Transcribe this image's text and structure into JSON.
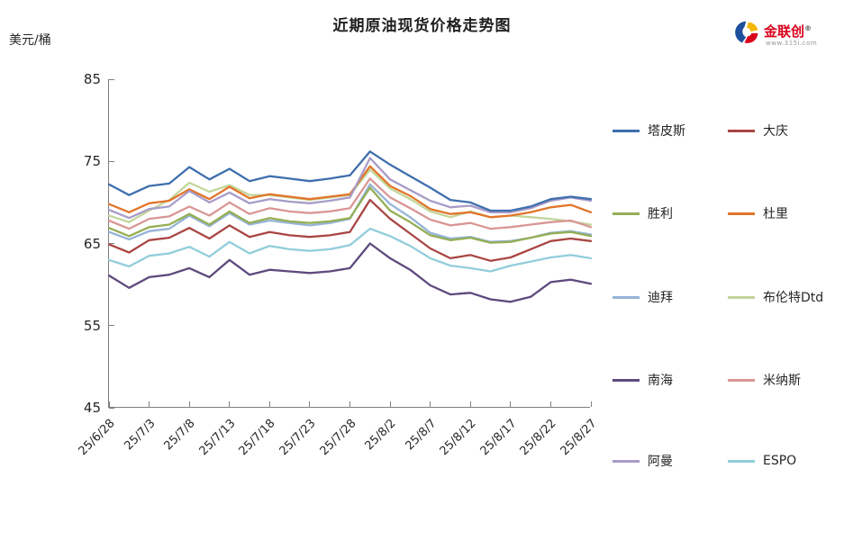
{
  "title": "近期原油现货价格走势图",
  "y_axis_unit": "美元/桶",
  "logo": {
    "name": "金联创",
    "reg": "®",
    "url": "www.315i.com"
  },
  "chart_data": {
    "type": "line",
    "title": "近期原油现货价格走势图",
    "ylabel": "美元/桶",
    "xlabel": "",
    "ylim": [
      45,
      85
    ],
    "y_ticks": [
      85,
      75,
      65,
      55,
      45
    ],
    "grid": false,
    "legend_position": "right",
    "x_tick_labels": [
      "25/6/28",
      "25/7/3",
      "25/7/8",
      "25/7/13",
      "25/7/18",
      "25/7/23",
      "25/7/28",
      "25/8/2",
      "25/8/7",
      "25/8/12",
      "25/8/17",
      "25/8/22",
      "25/8/27"
    ],
    "series": [
      {
        "name": "塔皮斯",
        "color": "#3F6FAD",
        "values": [
          72.2,
          70.9,
          72.0,
          72.3,
          74.3,
          72.8,
          74.1,
          72.6,
          73.2,
          72.9,
          72.6,
          72.9,
          73.3,
          76.2,
          74.6,
          73.2,
          71.8,
          70.3,
          70.0,
          69.0,
          69.0,
          69.5,
          70.4,
          70.7,
          70.4
        ]
      },
      {
        "name": "大庆",
        "color": "#A94643",
        "values": [
          64.9,
          63.9,
          65.4,
          65.7,
          66.9,
          65.6,
          67.2,
          65.8,
          66.4,
          66.0,
          65.8,
          66.0,
          66.4,
          70.3,
          68.0,
          66.2,
          64.4,
          63.2,
          63.6,
          62.9,
          63.3,
          64.3,
          65.3,
          65.6,
          65.3
        ]
      },
      {
        "name": "胜利",
        "color": "#94AF54",
        "values": [
          66.9,
          65.9,
          67.0,
          67.3,
          68.6,
          67.3,
          68.9,
          67.5,
          68.1,
          67.7,
          67.5,
          67.7,
          68.1,
          71.8,
          69.0,
          67.6,
          66.0,
          65.4,
          65.7,
          65.1,
          65.2,
          65.7,
          66.2,
          66.4,
          65.9
        ]
      },
      {
        "name": "杜里",
        "color": "#E2752B",
        "values": [
          69.8,
          68.8,
          69.9,
          70.2,
          71.6,
          70.4,
          71.9,
          70.5,
          71.0,
          70.7,
          70.4,
          70.7,
          71.0,
          74.4,
          72.0,
          70.8,
          69.2,
          68.6,
          68.8,
          68.2,
          68.4,
          68.8,
          69.4,
          69.7,
          68.8
        ]
      },
      {
        "name": "迪拜",
        "color": "#95B3D7",
        "values": [
          66.4,
          65.5,
          66.5,
          66.8,
          68.4,
          67.1,
          68.7,
          67.3,
          67.8,
          67.5,
          67.2,
          67.5,
          68.0,
          72.2,
          69.8,
          68.2,
          66.3,
          65.6,
          65.8,
          65.2,
          65.3,
          65.7,
          66.3,
          66.5,
          66.1
        ]
      },
      {
        "name": "布伦特Dtd",
        "color": "#C3D69B",
        "values": [
          68.4,
          67.6,
          69.0,
          70.3,
          72.4,
          71.3,
          72.1,
          70.9,
          70.9,
          70.6,
          70.3,
          70.6,
          70.9,
          74.0,
          71.7,
          70.4,
          68.9,
          68.2,
          68.9,
          68.2,
          68.4,
          68.2,
          68.0,
          67.7,
          67.3
        ]
      },
      {
        "name": "南海",
        "color": "#5E4A7D",
        "values": [
          61.1,
          59.6,
          60.9,
          61.2,
          62.0,
          60.9,
          63.0,
          61.2,
          61.8,
          61.6,
          61.4,
          61.6,
          62.0,
          65.0,
          63.2,
          61.8,
          59.9,
          58.8,
          59.0,
          58.2,
          57.9,
          58.5,
          60.3,
          60.6,
          60.1
        ]
      },
      {
        "name": "米纳斯",
        "color": "#D99694",
        "values": [
          67.8,
          66.8,
          68.0,
          68.3,
          69.5,
          68.4,
          70.0,
          68.6,
          69.3,
          68.9,
          68.7,
          68.9,
          69.3,
          72.9,
          70.6,
          69.3,
          67.9,
          67.2,
          67.5,
          66.8,
          67.0,
          67.3,
          67.6,
          67.8,
          67.0
        ]
      },
      {
        "name": "阿曼",
        "color": "#A89CC8",
        "values": [
          69.1,
          68.1,
          69.2,
          69.5,
          71.4,
          70.0,
          71.2,
          69.9,
          70.4,
          70.1,
          69.9,
          70.2,
          70.6,
          75.4,
          72.8,
          71.5,
          70.2,
          69.4,
          69.6,
          68.8,
          68.8,
          69.3,
          70.2,
          70.6,
          70.2
        ]
      },
      {
        "name": "ESPO",
        "color": "#92CDDC",
        "values": [
          63.0,
          62.2,
          63.5,
          63.8,
          64.6,
          63.4,
          65.2,
          63.8,
          64.7,
          64.3,
          64.1,
          64.3,
          64.8,
          66.8,
          65.9,
          64.7,
          63.2,
          62.3,
          62.0,
          61.6,
          62.3,
          62.8,
          63.3,
          63.6,
          63.2
        ]
      }
    ]
  }
}
